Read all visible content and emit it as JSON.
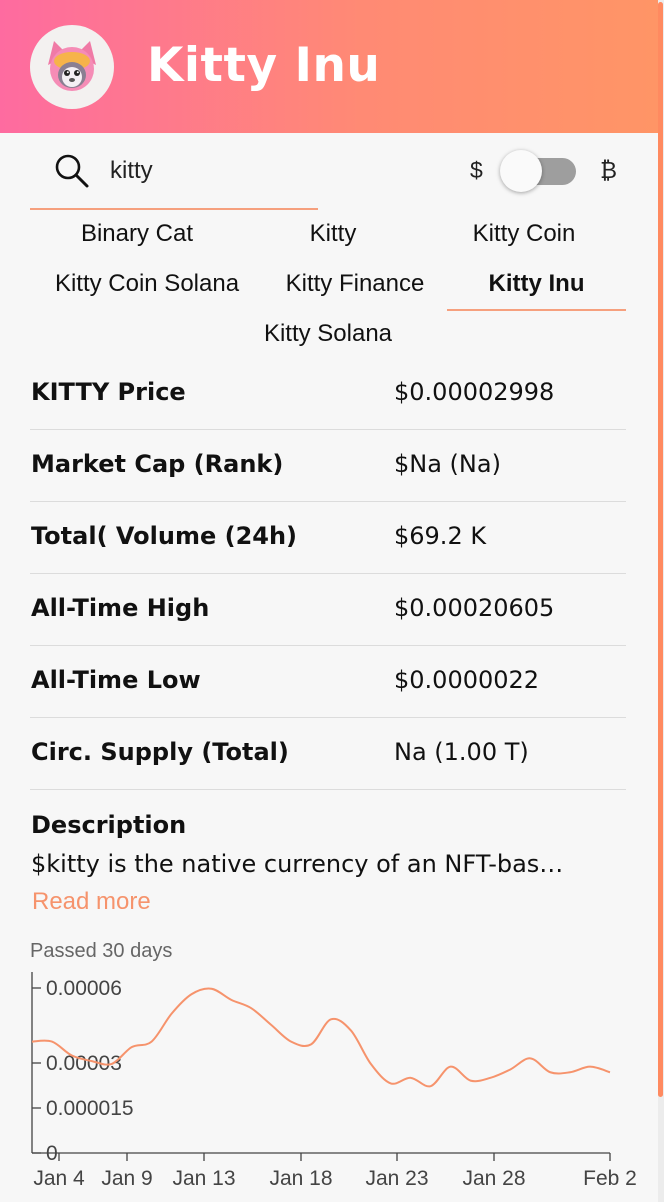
{
  "header": {
    "title": "Kitty Inu",
    "gradient": [
      "#fe6ba0",
      "#ff9566"
    ]
  },
  "search": {
    "value": "kitty",
    "icon": "search-icon"
  },
  "currency_toggle": {
    "left_symbol": "$",
    "right_symbol": "₿",
    "selected": "$"
  },
  "tabs": [
    {
      "label": "Binary Cat"
    },
    {
      "label": "Kitty"
    },
    {
      "label": "Kitty Coin"
    },
    {
      "label": "Kitty Coin Solana"
    },
    {
      "label": "Kitty Finance"
    },
    {
      "label": "Kitty Inu",
      "active": true
    },
    {
      "label": "Kitty Solana"
    }
  ],
  "stats": [
    {
      "label": "KITTY Price",
      "value": "$0.00002998"
    },
    {
      "label": "Market Cap (Rank)",
      "value": "$Na (Na)"
    },
    {
      "label": "Total( Volume (24h)",
      "value": "$69.2 K"
    },
    {
      "label": "All-Time High",
      "value": "$0.00020605"
    },
    {
      "label": "All-Time Low",
      "value": "$0.0000022"
    },
    {
      "label": "Circ. Supply (Total)",
      "value": "Na (1.00 T)"
    }
  ],
  "description": {
    "heading": "Description",
    "text": "$kitty is the native currency of an NFT-bas…",
    "read_more": "Read more"
  },
  "accent_color": "#f6936c",
  "chart_data": {
    "type": "line",
    "title": "Passed 30 days",
    "x_ticks": [
      "Jan 4",
      "Jan 9",
      "Jan 13",
      "Jan 18",
      "Jan 23",
      "Jan 28",
      "Feb 2"
    ],
    "y_ticks": [
      "0",
      "0.000015",
      "0.00003",
      "0.00006"
    ],
    "ylim": [
      0,
      6e-05
    ],
    "series": [
      {
        "color": "#f6936c",
        "points": [
          {
            "x": "Jan 4",
            "y": 4e-05
          },
          {
            "x": "Jan 5",
            "y": 4e-05
          },
          {
            "x": "Jan 7",
            "y": 3.5e-05
          },
          {
            "x": "Jan 8",
            "y": 3.3e-05
          },
          {
            "x": "Jan 9",
            "y": 3.2e-05
          },
          {
            "x": "Jan 10",
            "y": 3.8e-05
          },
          {
            "x": "Jan 11",
            "y": 4e-05
          },
          {
            "x": "Jan 12",
            "y": 5e-05
          },
          {
            "x": "Jan 13",
            "y": 5.7e-05
          },
          {
            "x": "Jan 14",
            "y": 5.9e-05
          },
          {
            "x": "Jan 15",
            "y": 5.5e-05
          },
          {
            "x": "Jan 16",
            "y": 5.2e-05
          },
          {
            "x": "Jan 17",
            "y": 4.6e-05
          },
          {
            "x": "Jan 18",
            "y": 4e-05
          },
          {
            "x": "Jan 19",
            "y": 3.9e-05
          },
          {
            "x": "Jan 20",
            "y": 4.8e-05
          },
          {
            "x": "Jan 21",
            "y": 4.4e-05
          },
          {
            "x": "Jan 22",
            "y": 3.2e-05
          },
          {
            "x": "Jan 23",
            "y": 2.5e-05
          },
          {
            "x": "Jan 24",
            "y": 2.7e-05
          },
          {
            "x": "Jan 25",
            "y": 2.4e-05
          },
          {
            "x": "Jan 26",
            "y": 3.1e-05
          },
          {
            "x": "Jan 27",
            "y": 2.6e-05
          },
          {
            "x": "Jan 28",
            "y": 2.7e-05
          },
          {
            "x": "Jan 29",
            "y": 3e-05
          },
          {
            "x": "Jan 30",
            "y": 3.4e-05
          },
          {
            "x": "Jan 31",
            "y": 2.9e-05
          },
          {
            "x": "Feb 1",
            "y": 2.9e-05
          },
          {
            "x": "Feb 2",
            "y": 3.1e-05
          },
          {
            "x": "Feb 3",
            "y": 2.9e-05
          }
        ]
      }
    ]
  }
}
